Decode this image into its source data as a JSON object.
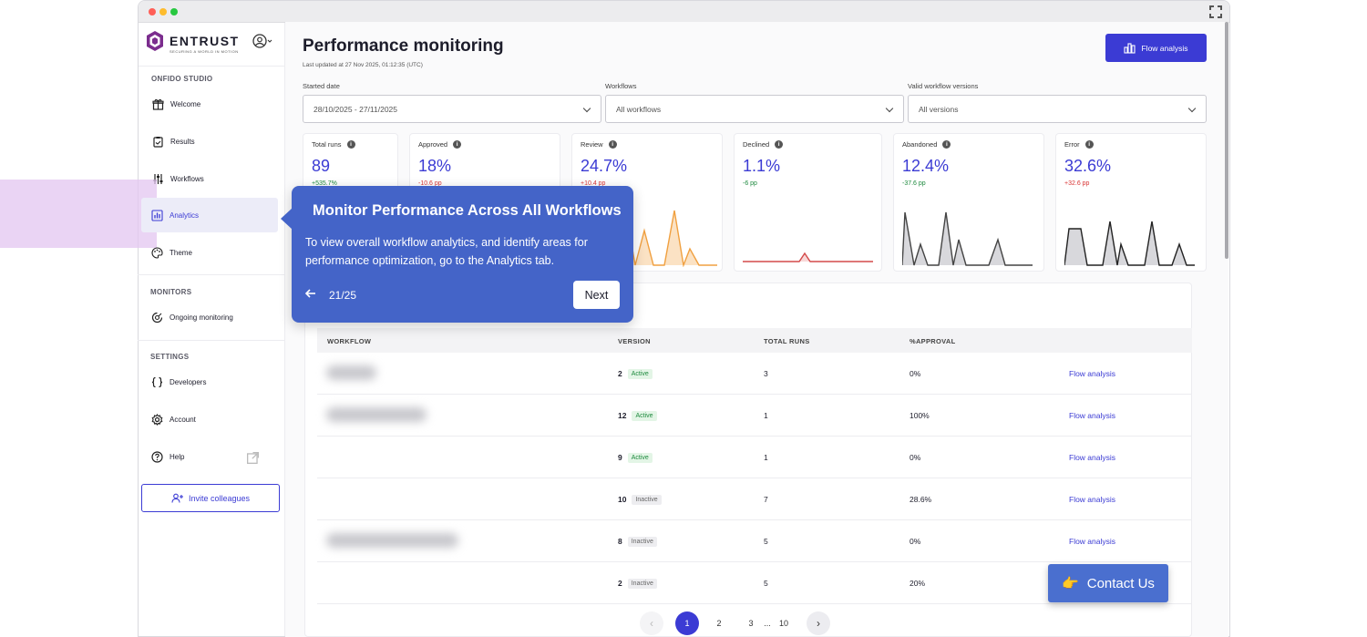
{
  "sidebar": {
    "brand": "ENTRUST",
    "tagline": "SECURING A WORLD IN MOTION",
    "sections": {
      "studio": "ONFIDO STUDIO",
      "monitors": "MONITORS",
      "settings": "SETTINGS"
    },
    "items": {
      "welcome": "Welcome",
      "results": "Results",
      "workflows": "Workflows",
      "analytics": "Analytics",
      "theme": "Theme",
      "ongoing": "Ongoing monitoring",
      "developers": "Developers",
      "account": "Account",
      "help": "Help"
    },
    "invite_label": "Invite colleagues"
  },
  "header": {
    "title": "Performance monitoring",
    "last_updated": "Last updated at 27 Nov 2025, 01:12:35 (UTC)",
    "flow_button": "Flow analysis"
  },
  "filters": {
    "started_label": "Started date",
    "started_value": "28/10/2025 - 27/11/2025",
    "workflows_label": "Workflows",
    "workflows_value": "All workflows",
    "versions_label": "Valid workflow versions",
    "versions_value": "All versions"
  },
  "metrics": [
    {
      "label": "Total runs",
      "value": "89",
      "delta": "+535.7%",
      "tone": "green"
    },
    {
      "label": "Approved",
      "value": "18%",
      "delta": "-10.6 pp",
      "tone": "red"
    },
    {
      "label": "Review",
      "value": "24.7%",
      "delta": "+10.4 pp",
      "tone": "red"
    },
    {
      "label": "Declined",
      "value": "1.1%",
      "delta": "-6 pp",
      "tone": "green"
    },
    {
      "label": "Abandoned",
      "value": "12.4%",
      "delta": "-37.6 pp",
      "tone": "green"
    },
    {
      "label": "Error",
      "value": "32.6%",
      "delta": "+32.6 pp",
      "tone": "red"
    }
  ],
  "table": {
    "headers": {
      "workflow": "WORKFLOW",
      "version": "VERSION",
      "total_runs": "TOTAL RUNS",
      "approval": "%APPROVAL"
    },
    "rows": [
      {
        "version": "2",
        "status": "Active",
        "runs": "3",
        "approval": "0%",
        "action": "Flow analysis"
      },
      {
        "version": "12",
        "status": "Active",
        "runs": "1",
        "approval": "100%",
        "action": "Flow analysis"
      },
      {
        "version": "9",
        "status": "Active",
        "runs": "1",
        "approval": "0%",
        "action": "Flow analysis"
      },
      {
        "version": "10",
        "status": "Inactive",
        "runs": "7",
        "approval": "28.6%",
        "action": "Flow analysis"
      },
      {
        "version": "8",
        "status": "Inactive",
        "runs": "5",
        "approval": "0%",
        "action": "Flow analysis"
      },
      {
        "version": "2",
        "status": "Inactive",
        "runs": "5",
        "approval": "20%",
        "action": ""
      }
    ]
  },
  "pagination": {
    "pages": [
      "1",
      "2",
      "3",
      "...",
      "10"
    ],
    "current": "1",
    "prev_icon": "chevron-left-icon",
    "next_icon": "chevron-right-icon"
  },
  "tour": {
    "title": "Monitor Performance Across All Workflows",
    "body": "To view overall workflow analytics, and identify areas for performance optimization, go to the Analytics tab.",
    "step": "21/25",
    "next_label": "Next"
  },
  "contact": {
    "label": "Contact Us",
    "emoji": "👉"
  },
  "colors": {
    "accent": "#3b3bd4",
    "tour": "#4464c8",
    "highlight": "#e3c6f0",
    "brand": "#7b2d8e",
    "contact": "#4a6fcf"
  }
}
